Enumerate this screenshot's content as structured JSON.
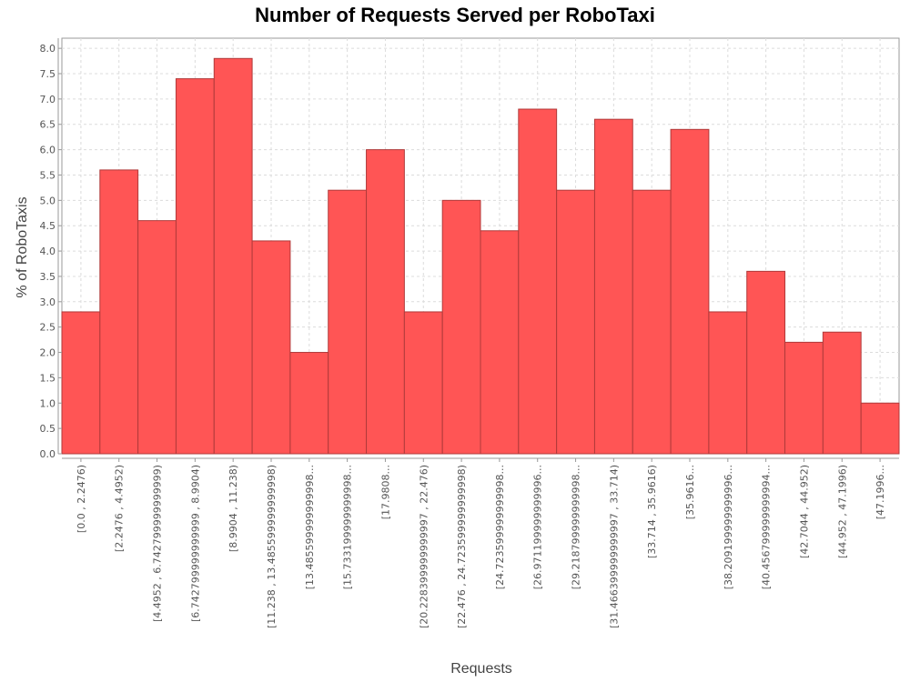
{
  "chart_data": {
    "type": "bar",
    "title": "Number of Requests Served per RoboTaxi",
    "xlabel": "Requests",
    "ylabel": "% of RoboTaxis",
    "ylim": [
      0,
      8.2
    ],
    "yticks": [
      "0.0",
      "0.5",
      "1.0",
      "1.5",
      "2.0",
      "2.5",
      "3.0",
      "3.5",
      "4.0",
      "4.5",
      "5.0",
      "5.5",
      "6.0",
      "6.5",
      "7.0",
      "7.5",
      "8.0"
    ],
    "grid": true,
    "bar_color": "#ff5555",
    "categories": [
      "[0.0 , 2.2476)",
      "[2.2476 , 4.4952)",
      "[4.4952 , 6.742799999999999)",
      "[6.742799999999999 , 8.9904)",
      "[8.9904 , 11.238)",
      "[11.238 , 13.485599999999998)",
      "[13.485599999999998...",
      "[15.733199999999998...",
      "[17.9808...",
      "[20.228399999999997 , 22.476)",
      "[22.476 , 24.723599999999998)",
      "[24.723599999999998...",
      "[26.971199999999996...",
      "[29.218799999999998...",
      "[31.466399999999997 , 33.714)",
      "[33.714 , 35.9616)",
      "[35.9616...",
      "[38.209199999999996...",
      "[40.456799999999994...",
      "[42.7044 , 44.952)",
      "[44.952 , 47.1996)",
      "[47.1996..."
    ],
    "values": [
      2.8,
      5.6,
      4.6,
      7.4,
      7.8,
      4.2,
      2.0,
      5.2,
      6.0,
      2.8,
      5.0,
      4.4,
      6.8,
      5.2,
      6.6,
      5.2,
      6.4,
      2.8,
      3.6,
      2.2,
      2.4,
      1.0
    ]
  }
}
